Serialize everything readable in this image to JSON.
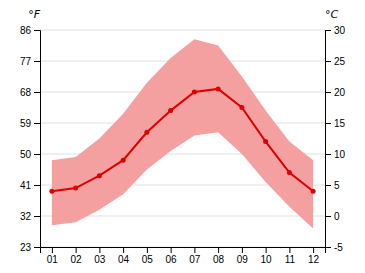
{
  "chart_data": {
    "type": "line",
    "categories": [
      "01",
      "02",
      "03",
      "04",
      "05",
      "06",
      "07",
      "08",
      "09",
      "10",
      "11",
      "12"
    ],
    "series": [
      {
        "type": "band",
        "color": "#f5a0a0",
        "lower": [
          -1.5,
          -1.0,
          1.0,
          3.5,
          7.5,
          10.5,
          13.0,
          13.5,
          10.0,
          5.5,
          1.5,
          -2.0
        ],
        "upper": [
          9.0,
          9.5,
          12.5,
          16.5,
          21.5,
          25.5,
          28.5,
          27.5,
          22.5,
          17.0,
          12.0,
          9.0
        ]
      },
      {
        "type": "line",
        "color": "#dd0000",
        "marker": "circle",
        "values": [
          4.0,
          4.5,
          6.5,
          9.0,
          13.5,
          17.0,
          20.0,
          20.5,
          17.5,
          12.0,
          7.0,
          4.0
        ]
      }
    ],
    "ylabel": "°C",
    "ylim": [
      -5,
      30
    ],
    "yticks": [
      -5,
      0,
      5,
      10,
      15,
      20,
      25,
      30
    ],
    "y2label": "°F",
    "y2lim": [
      23,
      86
    ],
    "y2ticks": [
      23,
      32,
      41,
      50,
      59,
      68,
      77,
      86
    ],
    "grid": true
  }
}
